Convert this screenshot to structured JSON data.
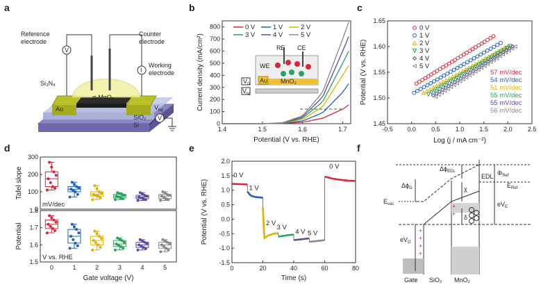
{
  "panel_labels": [
    "a",
    "b",
    "c",
    "d",
    "e",
    "f"
  ],
  "panel_a": {
    "labels": {
      "reference": "Reference",
      "reference2": "electrode",
      "counter": "Counter",
      "counter2": "electrode",
      "working": "Working",
      "working2": "electrode",
      "sin": "Si₃N₄",
      "mno2": "α-MnO₂",
      "au": "Au",
      "sio2": "SiO₂",
      "si": "Si",
      "vbg": "V",
      "vbg_sub": "bg",
      "v_symbol": "V",
      "i_symbol": "I"
    }
  },
  "panel_f": {
    "labels": {
      "dphi_edl": "Δϕ",
      "dphi_edl_sub": "EDL",
      "dphi_g": "Δϕ",
      "dphi_g_sub": "G",
      "chi": "χ",
      "edl": "EDL",
      "phi_ref": "Φ",
      "phi_ref_sub": "Ref",
      "e_ref": "E",
      "e_ref_sub": "Ref",
      "e_vac": "E",
      "e_vac_sub": "vac",
      "ev_e": "eV",
      "ev_e_sub": "E",
      "delta": "δ",
      "ev_g": "eV",
      "ev_g_sub": "G",
      "gate": "Gate",
      "sio2": "SiO₂",
      "mno2": "MnO₂"
    }
  },
  "chart_data": [
    {
      "panel": "b",
      "type": "line",
      "title": "",
      "xlabel": "Potential (V vs. RHE)",
      "ylabel": "Current density (mA/cm²)",
      "xlim": [
        1.4,
        1.72
      ],
      "ylim": [
        0,
        850
      ],
      "xticks": [
        "1.4",
        "1.5",
        "1.6",
        "1.7"
      ],
      "yticks": [
        "0",
        "100",
        "200",
        "300",
        "400",
        "500",
        "600",
        "700",
        "800"
      ],
      "legend": [
        "0 V",
        "1 V",
        "2 V",
        "3 V",
        "4 V",
        "5 V"
      ],
      "legend_placement": "top",
      "series": [
        {
          "name": "0 V",
          "color": "#d62839",
          "x": [
            1.4,
            1.5,
            1.55,
            1.6,
            1.65,
            1.7,
            1.715
          ],
          "y": [
            0,
            0,
            2,
            12,
            45,
            120,
            155
          ]
        },
        {
          "name": "1 V",
          "color": "#1f5fbf",
          "x": [
            1.4,
            1.5,
            1.55,
            1.6,
            1.65,
            1.7,
            1.715
          ],
          "y": [
            0,
            0,
            3,
            22,
            90,
            260,
            330
          ]
        },
        {
          "name": "2 V",
          "color": "#e0b000",
          "x": [
            1.4,
            1.5,
            1.55,
            1.6,
            1.65,
            1.7,
            1.715
          ],
          "y": [
            0,
            0,
            5,
            35,
            140,
            400,
            480
          ]
        },
        {
          "name": "3 V",
          "color": "#27a35a",
          "x": [
            1.4,
            1.5,
            1.55,
            1.6,
            1.65,
            1.7,
            1.715
          ],
          "y": [
            0,
            0,
            6,
            45,
            180,
            500,
            600
          ]
        },
        {
          "name": "4 V",
          "color": "#5a4aa3",
          "x": [
            1.4,
            1.5,
            1.55,
            1.6,
            1.65,
            1.7,
            1.715
          ],
          "y": [
            0,
            0,
            7,
            55,
            220,
            600,
            720
          ]
        },
        {
          "name": "5 V",
          "color": "#888888",
          "x": [
            1.4,
            1.5,
            1.55,
            1.6,
            1.65,
            1.7,
            1.715
          ],
          "y": [
            0,
            0,
            8,
            65,
            260,
            700,
            840
          ]
        }
      ],
      "inset": {
        "labels": {
          "re": "RE",
          "ce": "CE",
          "we": "WE",
          "au": "Au",
          "mno2": "MnO₂",
          "vg": "V",
          "vg_sub": "G",
          "vbg": "V",
          "vbg_sub": "bg"
        }
      }
    },
    {
      "panel": "c",
      "type": "scatter",
      "title": "",
      "xlabel": "Log (j / mA cm⁻²)",
      "ylabel": "Potential (V vs. RHE)",
      "xlim": [
        -0.5,
        2.5
      ],
      "ylim": [
        1.45,
        1.65
      ],
      "xticks": [
        "-0.5",
        "0.0",
        "0.5",
        "1.0",
        "1.5",
        "2.0",
        "2.5"
      ],
      "yticks": [
        "1.45",
        "1.50",
        "1.55",
        "1.60",
        "1.65"
      ],
      "legend": [
        "0 V",
        "1 V",
        "2 V",
        "3 V",
        "4 V",
        "5 V"
      ],
      "legend_placement": "top-left",
      "slopes": [
        "57 mV/dec",
        "54 mV/dec",
        "51 mV/dec",
        "55 mV/dec",
        "55 mV/dec",
        "56 mV/dec"
      ],
      "series": [
        {
          "name": "0 V",
          "color": "#d62839",
          "x": [
            0.1,
            1.7
          ],
          "y": [
            1.528,
            1.62
          ]
        },
        {
          "name": "1 V",
          "color": "#1f5fbf",
          "x": [
            0.05,
            1.85
          ],
          "y": [
            1.51,
            1.607
          ]
        },
        {
          "name": "2 V",
          "color": "#e0b000",
          "x": [
            0.25,
            2.0
          ],
          "y": [
            1.51,
            1.601
          ]
        },
        {
          "name": "3 V",
          "color": "#27a35a",
          "x": [
            0.35,
            2.05
          ],
          "y": [
            1.507,
            1.601
          ]
        },
        {
          "name": "4 V",
          "color": "#5a4aa3",
          "x": [
            0.45,
            2.1
          ],
          "y": [
            1.505,
            1.6
          ]
        },
        {
          "name": "5 V",
          "color": "#888888",
          "x": [
            0.5,
            2.15
          ],
          "y": [
            1.503,
            1.6
          ]
        }
      ]
    },
    {
      "panel": "d",
      "type": "box",
      "title": "",
      "xlabel": "Gate voltage (V)",
      "categories": [
        "0",
        "1",
        "2",
        "3",
        "4",
        "5"
      ],
      "colors": [
        "#d62839",
        "#1f5fbf",
        "#e0b000",
        "#27a35a",
        "#5a4aa3",
        "#888888"
      ],
      "top": {
        "ylabel": "Tafel slope",
        "unit": "mV/dec",
        "ylim": [
          0,
          300
        ],
        "yticks": [
          "0",
          "100",
          "200",
          "300"
        ],
        "boxes": [
          {
            "min": 110,
            "q1": 130,
            "median": 175,
            "q3": 215,
            "max": 270
          },
          {
            "min": 70,
            "q1": 100,
            "median": 115,
            "q3": 130,
            "max": 155
          },
          {
            "min": 55,
            "q1": 75,
            "median": 85,
            "q3": 100,
            "max": 135
          },
          {
            "min": 55,
            "q1": 65,
            "median": 75,
            "q3": 85,
            "max": 95
          },
          {
            "min": 50,
            "q1": 60,
            "median": 70,
            "q3": 80,
            "max": 95
          },
          {
            "min": 50,
            "q1": 60,
            "median": 75,
            "q3": 85,
            "max": 100
          }
        ]
      },
      "bottom": {
        "ylabel": "Potential",
        "unit": "V vs. RHE",
        "ylim": [
          1.5,
          1.8
        ],
        "yticks": [
          "1.5",
          "1.6",
          "1.7",
          "1.8"
        ],
        "boxes": [
          {
            "min": 1.67,
            "q1": 1.695,
            "median": 1.72,
            "q3": 1.745,
            "max": 1.77
          },
          {
            "min": 1.58,
            "q1": 1.61,
            "median": 1.65,
            "q3": 1.69,
            "max": 1.72
          },
          {
            "min": 1.57,
            "q1": 1.6,
            "median": 1.625,
            "q3": 1.65,
            "max": 1.68
          },
          {
            "min": 1.57,
            "q1": 1.59,
            "median": 1.605,
            "q3": 1.625,
            "max": 1.64
          },
          {
            "min": 1.57,
            "q1": 1.585,
            "median": 1.6,
            "q3": 1.615,
            "max": 1.63
          },
          {
            "min": 1.56,
            "q1": 1.58,
            "median": 1.6,
            "q3": 1.615,
            "max": 1.63
          }
        ]
      }
    },
    {
      "panel": "e",
      "type": "line",
      "title": "",
      "xlabel": "Time (s)",
      "ylabel": "Potential (V vs. RHE)",
      "xlim": [
        0,
        80
      ],
      "ylim": [
        -1.5,
        2.0
      ],
      "xticks": [
        "0",
        "20",
        "40",
        "60",
        "80"
      ],
      "yticks": [
        "-1.5",
        "-1.0",
        "-0.5",
        "0.0",
        "0.5",
        "1.0",
        "1.5",
        "2.0"
      ],
      "segment_labels": [
        "0 V",
        "1 V",
        "2 V",
        "3 V",
        "4 V",
        "5 V",
        "0 V"
      ],
      "segments": [
        {
          "color": "#d62839",
          "x": [
            0,
            10
          ],
          "y": [
            1.22,
            1.2
          ]
        },
        {
          "color": "#1f5fbf",
          "x": [
            10,
            12,
            14,
            16,
            18,
            20
          ],
          "y": [
            0.95,
            0.82,
            0.78,
            0.76,
            0.75,
            0.74
          ]
        },
        {
          "color": "#e0b000",
          "x": [
            20,
            21,
            24,
            27,
            30
          ],
          "y": [
            0.4,
            -0.65,
            -0.55,
            -0.5,
            -0.48
          ]
        },
        {
          "color": "#27a35a",
          "x": [
            30,
            33,
            36,
            40
          ],
          "y": [
            -0.6,
            -0.58,
            -0.55,
            -0.53
          ]
        },
        {
          "color": "#5a4aa3",
          "x": [
            40,
            44,
            47,
            50
          ],
          "y": [
            -0.72,
            -0.7,
            -0.68,
            -0.66
          ]
        },
        {
          "color": "#888888",
          "x": [
            50,
            54,
            57,
            60
          ],
          "y": [
            -0.78,
            -0.76,
            -0.74,
            -0.72
          ]
        },
        {
          "color": "#d62839",
          "x": [
            60,
            65,
            70,
            75,
            80
          ],
          "y": [
            1.47,
            1.4,
            1.36,
            1.33,
            1.32
          ]
        }
      ]
    }
  ]
}
